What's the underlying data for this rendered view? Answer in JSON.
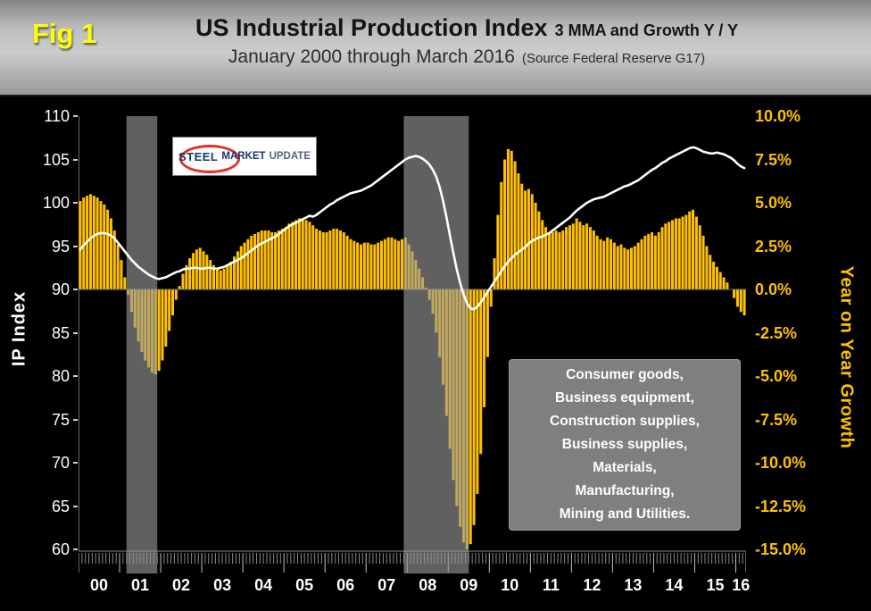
{
  "figure_label": "Fig 1",
  "title": {
    "main": "US Industrial Production Index",
    "main_suffix": "3 MMA and Growth Y / Y",
    "subtitle": "January 2000 through March 2016",
    "subtitle_suffix": "(Source Federal Reserve G17)"
  },
  "logo": {
    "word1": "STEEL",
    "word2": "MARKET",
    "word3": "UPDATE"
  },
  "annotation": {
    "lines": [
      "Consumer goods,",
      "Business equipment,",
      "Construction supplies,",
      "Business supplies,",
      "Materials,",
      "Manufacturing,",
      "Mining and Utilities."
    ]
  },
  "colors": {
    "bar": "#FFC000",
    "line": "#FFFFFF",
    "left_axis_text": "#FFFFFF",
    "right_axis_text": "#FFC000",
    "figure_label": "#FFFF00",
    "background": "#000000",
    "recession_band": "rgba(155,155,155,0.62)",
    "annotation_box": "#7F7F7F"
  },
  "chart_data": {
    "type": "bar+line combo",
    "x_start": "2000-01",
    "x_end": "2016-03",
    "months_per_year": 12,
    "x_year_labels": [
      "00",
      "01",
      "02",
      "03",
      "04",
      "05",
      "06",
      "07",
      "08",
      "09",
      "10",
      "11",
      "12",
      "13",
      "14",
      "15",
      "16"
    ],
    "left_axis": {
      "label": "IP Index",
      "range": [
        60,
        110
      ],
      "ticks": [
        110,
        105,
        100,
        95,
        90,
        85,
        80,
        75,
        70,
        65,
        60
      ]
    },
    "right_axis": {
      "label": "Year on Year Growth",
      "range": [
        -15,
        10
      ],
      "ticks": [
        "10.0%",
        "7.5%",
        "5.0%",
        "2.5%",
        "0.0%",
        "-2.5%",
        "-5.0%",
        "-7.5%",
        "-10.0%",
        "-12.5%",
        "-15.0%"
      ]
    },
    "recession_bands": [
      {
        "start": "2001-03",
        "end": "2001-11",
        "start_index": 14,
        "end_index": 22
      },
      {
        "start": "2007-12",
        "end": "2009-06",
        "start_index": 95,
        "end_index": 113
      }
    ],
    "series": [
      {
        "name": "IP Index 3 MMA",
        "type": "line",
        "axis": "left",
        "color": "#FFFFFF",
        "values": [
          94.6,
          95.1,
          95.5,
          95.9,
          96.2,
          96.4,
          96.5,
          96.5,
          96.4,
          96.2,
          95.9,
          95.4,
          94.9,
          94.4,
          93.9,
          93.4,
          93.0,
          92.6,
          92.3,
          92.0,
          91.7,
          91.5,
          91.3,
          91.2,
          91.3,
          91.4,
          91.6,
          91.8,
          92.0,
          92.1,
          92.3,
          92.4,
          92.4,
          92.5,
          92.5,
          92.4,
          92.4,
          92.5,
          92.5,
          92.4,
          92.4,
          92.5,
          92.6,
          92.8,
          93.0,
          93.2,
          93.4,
          93.6,
          93.9,
          94.2,
          94.5,
          94.8,
          95.1,
          95.3,
          95.5,
          95.7,
          95.9,
          96.1,
          96.4,
          96.7,
          97.0,
          97.3,
          97.5,
          97.7,
          97.9,
          98.1,
          98.3,
          98.5,
          98.4,
          98.6,
          98.9,
          99.2,
          99.5,
          99.8,
          100.0,
          100.3,
          100.5,
          100.7,
          100.9,
          101.1,
          101.2,
          101.3,
          101.4,
          101.6,
          101.8,
          102.0,
          102.3,
          102.6,
          102.9,
          103.2,
          103.5,
          103.8,
          104.1,
          104.4,
          104.7,
          105.0,
          105.2,
          105.3,
          105.4,
          105.3,
          105.1,
          104.8,
          104.4,
          103.8,
          103.0,
          101.8,
          100.2,
          98.3,
          96.2,
          94.2,
          92.3,
          90.7,
          89.4,
          88.4,
          87.8,
          87.7,
          88.0,
          88.5,
          89.1,
          89.7,
          90.3,
          90.9,
          91.5,
          92.1,
          92.7,
          93.2,
          93.6,
          94.0,
          94.3,
          94.6,
          94.9,
          95.3,
          95.6,
          95.8,
          96.0,
          96.1,
          96.3,
          96.5,
          96.8,
          97.1,
          97.4,
          97.7,
          98.0,
          98.3,
          98.7,
          99.1,
          99.4,
          99.7,
          100.0,
          100.2,
          100.4,
          100.5,
          100.6,
          100.7,
          100.9,
          101.1,
          101.3,
          101.5,
          101.7,
          101.9,
          102.0,
          102.2,
          102.4,
          102.6,
          102.9,
          103.2,
          103.5,
          103.8,
          104.0,
          104.3,
          104.6,
          104.8,
          105.1,
          105.3,
          105.5,
          105.7,
          105.9,
          106.1,
          106.3,
          106.4,
          106.3,
          106.1,
          105.9,
          105.8,
          105.7,
          105.7,
          105.8,
          105.7,
          105.6,
          105.4,
          105.2,
          104.9,
          104.5,
          104.2,
          104.0
        ]
      },
      {
        "name": "Growth Y / Y (%)",
        "type": "bar",
        "axis": "right",
        "color": "#FFC000",
        "values": [
          5.1,
          5.3,
          5.4,
          5.5,
          5.4,
          5.3,
          5.1,
          4.9,
          4.6,
          4.1,
          3.4,
          2.6,
          1.7,
          0.7,
          -0.3,
          -1.3,
          -2.2,
          -3.0,
          -3.6,
          -4.1,
          -4.5,
          -4.8,
          -4.9,
          -4.7,
          -4.1,
          -3.3,
          -2.4,
          -1.5,
          -0.6,
          0.2,
          0.9,
          1.4,
          1.8,
          2.1,
          2.3,
          2.4,
          2.2,
          2.0,
          1.7,
          1.4,
          1.2,
          1.1,
          1.2,
          1.4,
          1.6,
          1.9,
          2.2,
          2.5,
          2.7,
          2.9,
          3.1,
          3.2,
          3.3,
          3.4,
          3.4,
          3.4,
          3.3,
          3.3,
          3.4,
          3.5,
          3.6,
          3.8,
          3.9,
          4.0,
          4.1,
          4.1,
          4.0,
          3.9,
          3.7,
          3.5,
          3.4,
          3.3,
          3.3,
          3.4,
          3.5,
          3.5,
          3.4,
          3.3,
          3.1,
          2.9,
          2.8,
          2.7,
          2.6,
          2.7,
          2.7,
          2.6,
          2.6,
          2.7,
          2.8,
          2.9,
          3.0,
          3.0,
          2.9,
          2.8,
          2.9,
          3.0,
          2.6,
          2.2,
          1.7,
          1.2,
          0.7,
          0.1,
          -0.6,
          -1.4,
          -2.5,
          -3.9,
          -5.5,
          -7.3,
          -9.2,
          -11.0,
          -12.5,
          -13.7,
          -14.6,
          -15.0,
          -14.7,
          -13.6,
          -11.8,
          -9.5,
          -6.8,
          -3.9,
          -1.0,
          1.8,
          4.3,
          6.2,
          7.5,
          8.1,
          8.0,
          7.4,
          6.7,
          6.1,
          5.7,
          5.8,
          5.5,
          5.0,
          4.5,
          4.0,
          3.6,
          3.3,
          3.3,
          3.4,
          3.3,
          3.4,
          3.6,
          3.7,
          3.8,
          4.1,
          3.9,
          3.7,
          3.8,
          3.6,
          3.4,
          3.1,
          2.9,
          2.8,
          3.0,
          2.9,
          2.7,
          2.5,
          2.6,
          2.4,
          2.3,
          2.4,
          2.5,
          2.7,
          2.9,
          3.1,
          3.2,
          3.3,
          3.1,
          3.3,
          3.6,
          3.8,
          3.9,
          4.0,
          4.1,
          4.1,
          4.2,
          4.3,
          4.5,
          4.6,
          4.2,
          3.7,
          3.1,
          2.5,
          2.0,
          1.6,
          1.3,
          1.0,
          0.7,
          0.4,
          0.0,
          -0.5,
          -1.0,
          -1.3,
          -1.5
        ]
      }
    ]
  }
}
